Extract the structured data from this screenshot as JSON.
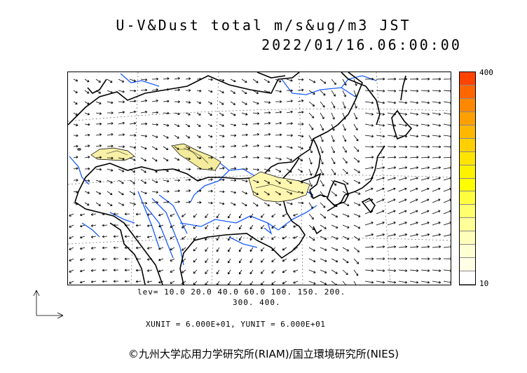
{
  "title": {
    "line1": "U-V&Dust total m/s&ug/m3 JST",
    "line2": "2022/01/16.06:00:00"
  },
  "levels": {
    "line1": "lev= 10.0 20.0 40.0 60.0 100. 150. 200.",
    "line2": "300. 400."
  },
  "units": {
    "text": "XUNIT = 6.000E+01, YUNIT = 6.000E+01"
  },
  "colorbar": {
    "max_label": "400",
    "min_label": "10",
    "colors": [
      "#ff4400",
      "#ff6600",
      "#ff8800",
      "#ffa000",
      "#ffb800",
      "#ffd000",
      "#ffe400",
      "#fff200",
      "#ffff00",
      "#ffff40",
      "#ffff70",
      "#ffff99",
      "#ffffbb",
      "#ffffd4",
      "#ffffe6",
      "#ffffff"
    ]
  },
  "credit": "©九州大学応用力学研究所(RIAM)/国立環境研究所(NIES)",
  "map": {
    "coast_color": "#000000",
    "river_color": "#1a5cff",
    "dust_color": "#ffffbb"
  }
}
